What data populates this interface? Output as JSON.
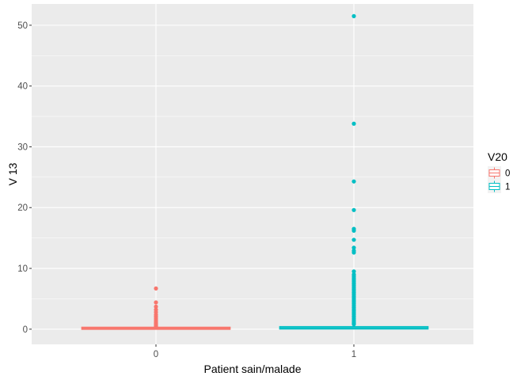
{
  "chart_data": {
    "type": "boxplot",
    "xlabel": "Patient sain/malade",
    "ylabel": "V 13",
    "categories": [
      "0",
      "1"
    ],
    "ylim": [
      -2.5,
      53.5
    ],
    "yticks": [
      0,
      10,
      20,
      30,
      40,
      50
    ],
    "grid": true,
    "legend": {
      "title": "V20",
      "position": "right",
      "entries": [
        {
          "label": "0",
          "color": "#F8766D"
        },
        {
          "label": "1",
          "color": "#00BFC4"
        }
      ]
    },
    "boxes": [
      {
        "category": "0",
        "group": "0",
        "color": "#F8766D",
        "min": 0,
        "q1": 0.1,
        "median": 0.15,
        "q3": 0.2,
        "max": 0.3,
        "outliers": [
          6.7,
          4.4,
          3.7,
          3.2,
          2.8,
          2.4,
          2.1,
          1.8,
          1.5,
          1.2,
          1.0,
          0.8,
          0.6,
          0.5,
          0.4
        ]
      },
      {
        "category": "1",
        "group": "1",
        "color": "#00BFC4",
        "min": 0,
        "q1": 0.15,
        "median": 0.2,
        "q3": 0.3,
        "max": 0.5,
        "outliers": [
          51.5,
          33.8,
          24.3,
          19.6,
          16.5,
          16.2,
          14.7,
          13.4,
          12.9,
          12.6,
          9.5,
          9.0,
          8.7,
          8.4,
          8.1,
          7.8,
          7.5,
          7.2,
          6.9,
          6.6,
          6.3,
          6.0,
          5.7,
          5.4,
          5.1,
          4.8,
          4.5,
          4.2,
          3.9,
          3.6,
          3.3,
          3.0,
          2.7,
          2.4,
          2.1,
          1.8,
          1.5,
          1.2,
          1.0,
          0.8
        ]
      }
    ]
  }
}
